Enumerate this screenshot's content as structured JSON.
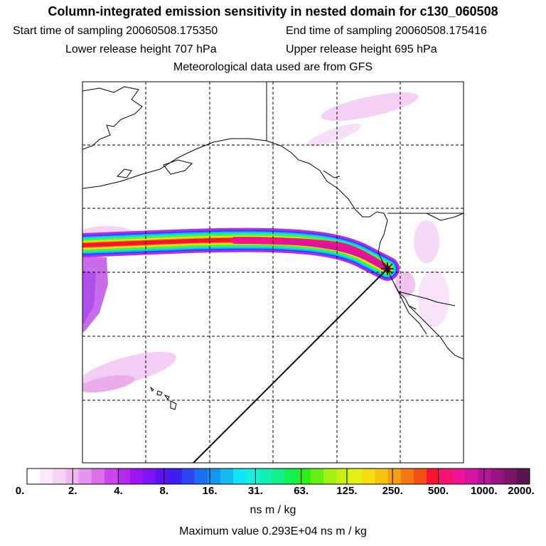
{
  "title": "Column-integrated emission sensitivity in nested domain for c130_060508",
  "start_label": "Start time of sampling 20060508.175350",
  "end_label": "End time of sampling 20060508.175416",
  "lower_label": "Lower release height  707 hPa",
  "upper_label": "Upper release height  695 hPa",
  "met_label": "Meteorological data used are from GFS",
  "colorbar": {
    "ticks": [
      "0.",
      "2.",
      "4.",
      "8.",
      "16.",
      "31.",
      "63.",
      "125.",
      "250.",
      "500.",
      "1000.",
      "2000."
    ],
    "colors": [
      "#ffffff",
      "#fbe8fb",
      "#f6d2f6",
      "#efb8ef",
      "#e696ee",
      "#db6ee9",
      "#cb47ec",
      "#b829ee",
      "#9b14f0",
      "#7d14f2",
      "#5a14f0",
      "#3c1ef0",
      "#2d46f0",
      "#1e6ef0",
      "#1496f0",
      "#14baf0",
      "#14e6f5",
      "#14f0dc",
      "#14f0b4",
      "#14f08c",
      "#14f050",
      "#28f014",
      "#64f014",
      "#a0f014",
      "#c8f014",
      "#e6f014",
      "#f5dc14",
      "#f5c314",
      "#f5a014",
      "#f57814",
      "#f55014",
      "#f51432",
      "#f5146e",
      "#f01496",
      "#d214a0",
      "#b41496",
      "#961482",
      "#781464",
      "#5a1450"
    ],
    "units": "ns m / kg",
    "max_label": "Maximum value  0.293E+04 ns m / kg"
  },
  "map_colors": {
    "coast": "#000000",
    "grid": "#000000"
  }
}
